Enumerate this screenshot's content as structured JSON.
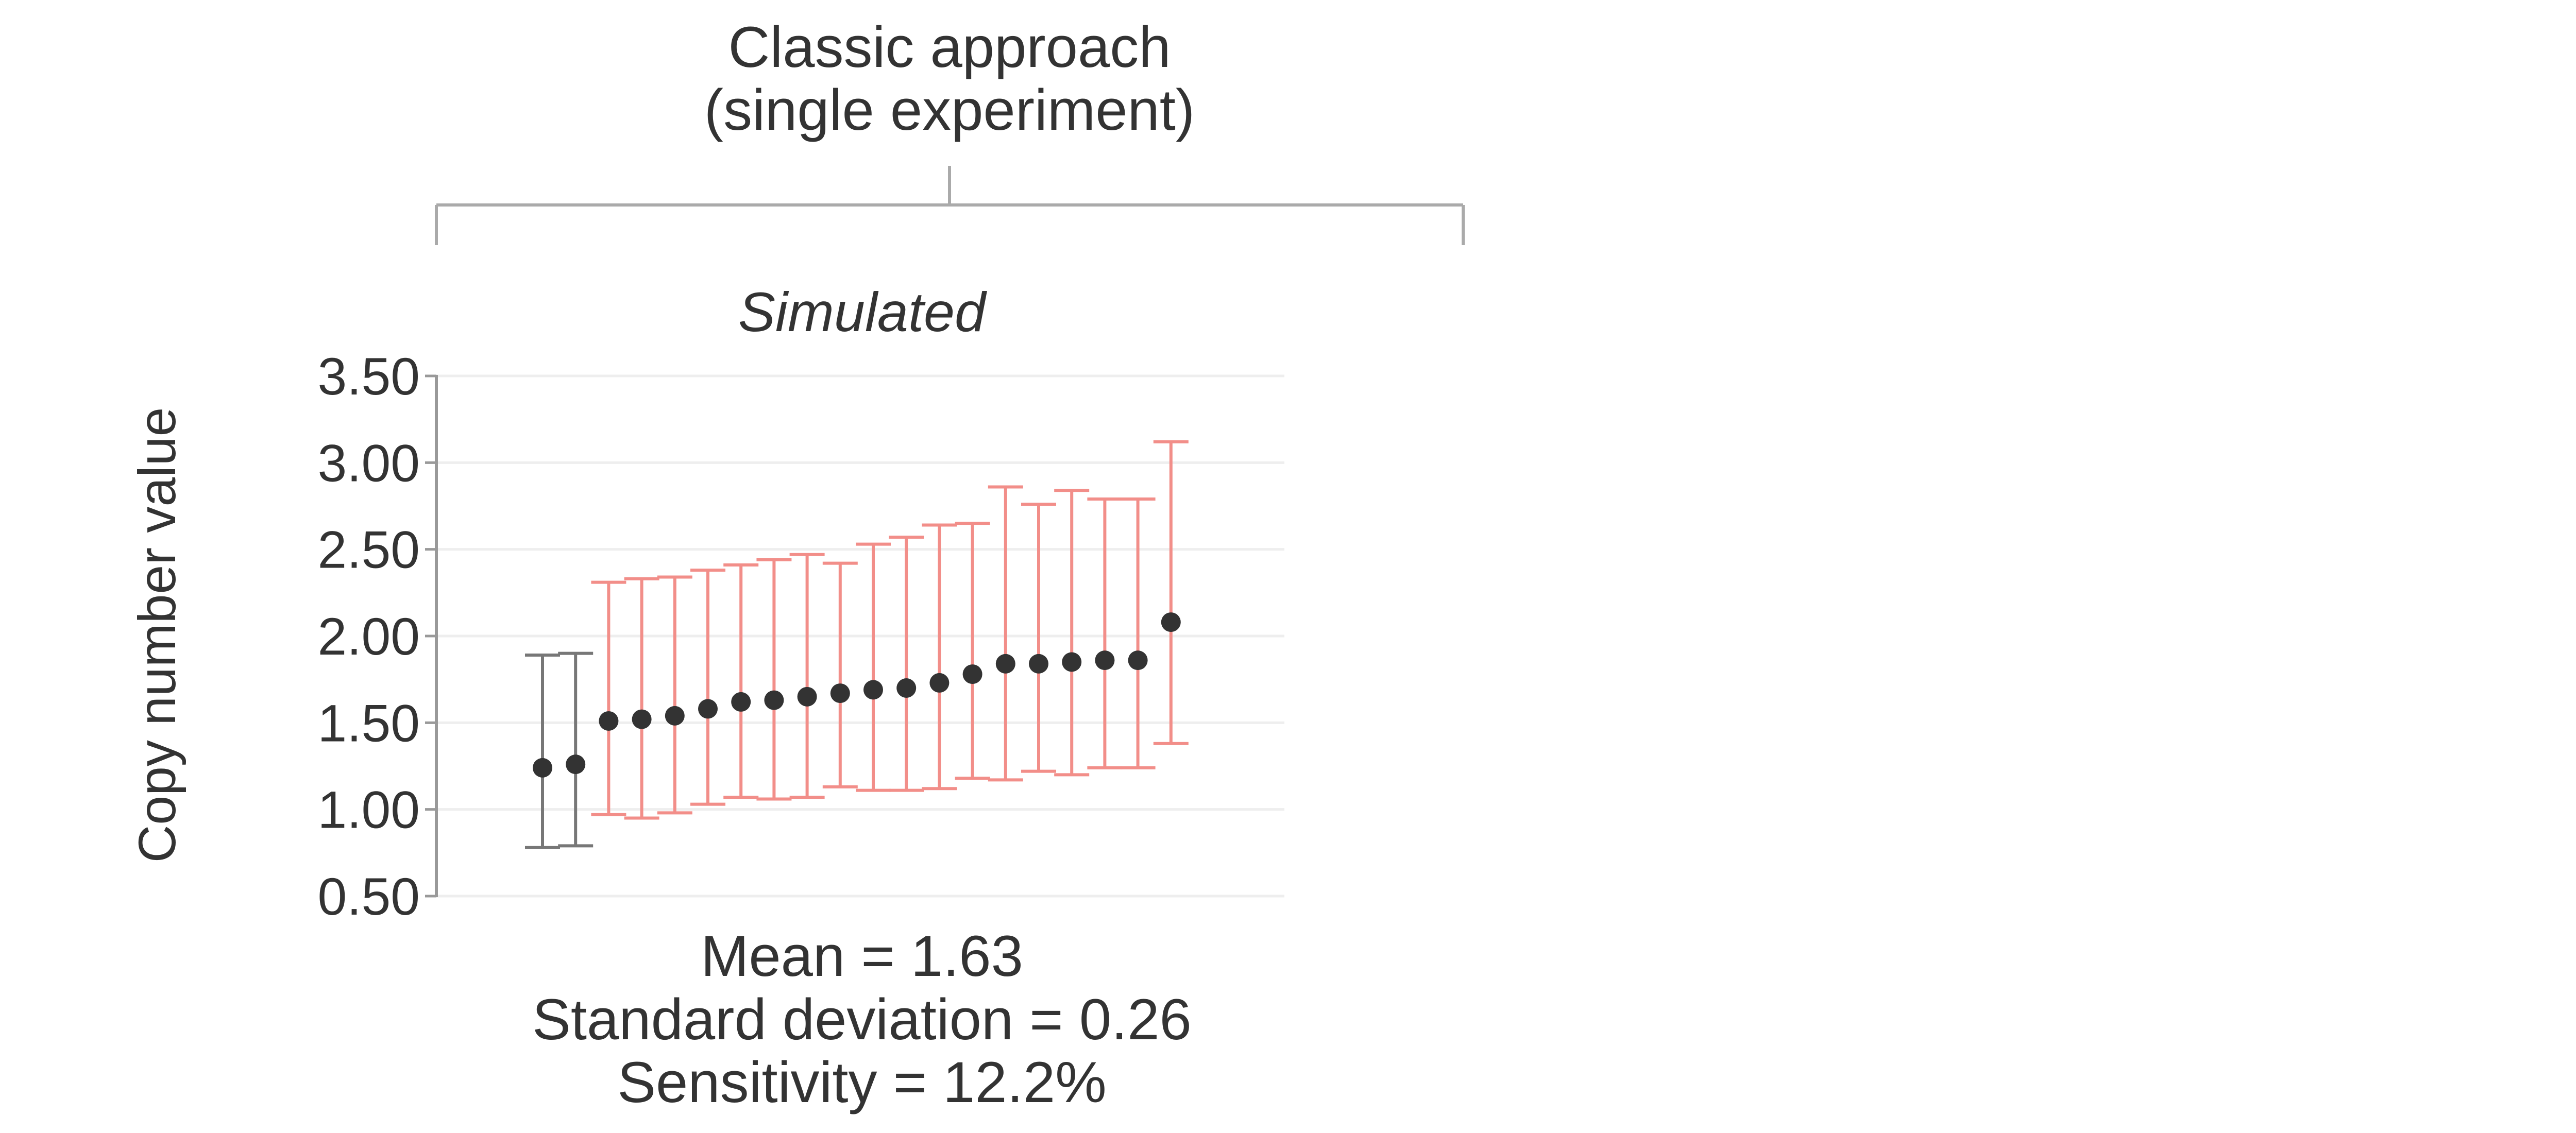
{
  "header": {
    "line1": "Classic approach",
    "line2": "(single experiment)"
  },
  "chart_data": {
    "type": "scatter",
    "subtitle": "Simulated",
    "xlabel": "",
    "ylabel": "Copy number value",
    "ylim": [
      0.5,
      3.5
    ],
    "yticks": [
      "0.50",
      "1.00",
      "1.50",
      "2.00",
      "2.50",
      "3.00",
      "3.50"
    ],
    "grid": true,
    "points": [
      {
        "y": 1.24,
        "lower": 0.78,
        "upper": 1.89,
        "color": "#777777"
      },
      {
        "y": 1.26,
        "lower": 0.79,
        "upper": 1.9,
        "color": "#777777"
      },
      {
        "y": 1.51,
        "lower": 0.97,
        "upper": 2.31,
        "color": "#f28e89"
      },
      {
        "y": 1.52,
        "lower": 0.95,
        "upper": 2.33,
        "color": "#f28e89"
      },
      {
        "y": 1.54,
        "lower": 0.98,
        "upper": 2.34,
        "color": "#f28e89"
      },
      {
        "y": 1.58,
        "lower": 1.03,
        "upper": 2.38,
        "color": "#f28e89"
      },
      {
        "y": 1.62,
        "lower": 1.07,
        "upper": 2.41,
        "color": "#f28e89"
      },
      {
        "y": 1.63,
        "lower": 1.06,
        "upper": 2.44,
        "color": "#f28e89"
      },
      {
        "y": 1.65,
        "lower": 1.07,
        "upper": 2.47,
        "color": "#f28e89"
      },
      {
        "y": 1.67,
        "lower": 1.13,
        "upper": 2.42,
        "color": "#f28e89"
      },
      {
        "y": 1.69,
        "lower": 1.11,
        "upper": 2.53,
        "color": "#f28e89"
      },
      {
        "y": 1.7,
        "lower": 1.11,
        "upper": 2.57,
        "color": "#f28e89"
      },
      {
        "y": 1.73,
        "lower": 1.12,
        "upper": 2.64,
        "color": "#f28e89"
      },
      {
        "y": 1.78,
        "lower": 1.18,
        "upper": 2.65,
        "color": "#f28e89"
      },
      {
        "y": 1.84,
        "lower": 1.17,
        "upper": 2.86,
        "color": "#f28e89"
      },
      {
        "y": 1.84,
        "lower": 1.22,
        "upper": 2.76,
        "color": "#f28e89"
      },
      {
        "y": 1.85,
        "lower": 1.2,
        "upper": 2.84,
        "color": "#f28e89"
      },
      {
        "y": 1.86,
        "lower": 1.24,
        "upper": 2.79,
        "color": "#f28e89"
      },
      {
        "y": 1.86,
        "lower": 1.24,
        "upper": 2.79,
        "color": "#f28e89"
      },
      {
        "y": 2.08,
        "lower": 1.38,
        "upper": 3.12,
        "color": "#f28e89"
      }
    ]
  },
  "stats": {
    "mean": "Mean = 1.63",
    "sd": "Standard deviation = 0.26",
    "sensitivity": "Sensitivity = 12.2%"
  },
  "colors": {
    "text": "#333333",
    "axis": "#999999",
    "grid": "#eeeeee",
    "point": "#333333",
    "errorbar_in": "#777777",
    "errorbar_out": "#f28e89"
  }
}
